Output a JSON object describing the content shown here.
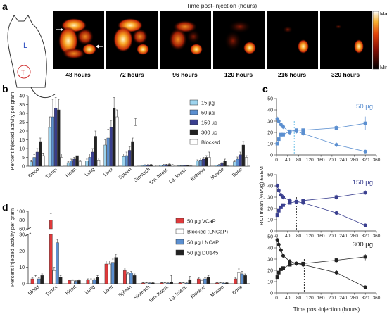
{
  "panel_labels": {
    "a": "a",
    "b": "b",
    "c": "c",
    "d": "d"
  },
  "panel_a": {
    "title": "Time post-injection (hours)",
    "mouse_labels": {
      "left": "L",
      "tumor": "T"
    },
    "timepoints": [
      "48 hours",
      "72 hours",
      "96 hours",
      "120 hours",
      "216 hours",
      "320 hours"
    ],
    "colorbar": {
      "max": "Max",
      "min": "Min"
    },
    "arrows": "→ ←"
  },
  "chart_data": [
    {
      "id": "b",
      "type": "bar",
      "ylabel": "Percent injected activity per gram",
      "ylim": [
        0,
        40
      ],
      "yticks": [
        0,
        5,
        10,
        15,
        20,
        25,
        30,
        35,
        40
      ],
      "categories": [
        "Blood",
        "Tumor",
        "Heart",
        "Lung",
        "Liver",
        "Spleen",
        "Stomach",
        "Sm. Intest.",
        "Lg. Intest.",
        "Kidneys",
        "Muscle",
        "Bone"
      ],
      "legend_position": "top-right",
      "series": [
        {
          "name": "15 µg",
          "color": "#9ed4ee",
          "values": [
            2.5,
            22,
            2,
            3,
            12,
            5.5,
            0.4,
            0.5,
            0.3,
            3,
            0.5,
            2.5
          ],
          "err": [
            1,
            6,
            0.6,
            1,
            3,
            1.5,
            0.2,
            0.2,
            0.2,
            0.6,
            0.2,
            0.8
          ]
        },
        {
          "name": "50 µg",
          "color": "#5b8fd0",
          "values": [
            5,
            28,
            3,
            5,
            16,
            6,
            0.5,
            0.7,
            0.3,
            3.5,
            0.7,
            4
          ],
          "err": [
            1.5,
            10,
            1,
            2,
            5,
            2,
            0.3,
            0.3,
            0.2,
            1,
            0.3,
            1.2
          ]
        },
        {
          "name": "150 µg",
          "color": "#3a3f8f",
          "values": [
            8,
            33,
            4,
            8,
            22,
            9,
            0.6,
            0.8,
            0.4,
            4,
            1.5,
            6.5
          ],
          "err": [
            2,
            6,
            1,
            2,
            4,
            2,
            0.3,
            0.3,
            0.2,
            1,
            0.5,
            1.5
          ]
        },
        {
          "name": "300 µg",
          "color": "#222222",
          "values": [
            14,
            32,
            6,
            17,
            33,
            14,
            0.8,
            1,
            0.5,
            5,
            3,
            12
          ],
          "err": [
            2,
            6,
            1,
            3,
            6,
            2,
            0.3,
            0.3,
            0.2,
            1,
            1,
            2
          ]
        },
        {
          "name": "Blocked",
          "color": "#ffffff",
          "values": [
            6,
            5,
            2.5,
            3.5,
            28,
            23,
            0.5,
            0.7,
            0.2,
            5,
            0.3,
            5
          ],
          "err": [
            1.5,
            2,
            0.8,
            1,
            4,
            4,
            0.2,
            0.2,
            0.2,
            3,
            0.2,
            1
          ]
        }
      ]
    },
    {
      "id": "c",
      "type": "scatter",
      "ylabel": "ROI mean (%IA/g) ±SEM",
      "xlabel": "Time post-injection (hours)",
      "xlim": [
        0,
        360
      ],
      "xticks": [
        0,
        40,
        80,
        120,
        160,
        200,
        240,
        280,
        320,
        360
      ],
      "panels": [
        {
          "label": "50 µg",
          "color": "#5b8fd0",
          "ylim": [
            0,
            50
          ],
          "yticks": [
            0,
            10,
            20,
            30,
            40,
            50
          ],
          "series": [
            {
              "marker": "circle",
              "x": [
                3,
                8,
                16,
                24,
                48,
                72,
                96,
                216,
                320
              ],
              "y": [
                32,
                30,
                27,
                25,
                20,
                21,
                19,
                9,
                3
              ],
              "err": [
                2,
                2,
                2,
                2,
                2,
                2,
                2,
                2,
                1
              ]
            },
            {
              "marker": "square",
              "x": [
                3,
                8,
                16,
                24,
                48,
                72,
                96,
                216,
                320
              ],
              "y": [
                10,
                14,
                18,
                18,
                21,
                22,
                22,
                24,
                28
              ],
              "err": [
                1,
                1,
                1,
                1,
                1,
                1,
                1,
                2,
                6
              ]
            }
          ],
          "dashed_x": 64
        },
        {
          "label": "150 µg",
          "color": "#3a3f8f",
          "ylim": [
            0,
            50
          ],
          "yticks": [
            0,
            10,
            20,
            30,
            40,
            50
          ],
          "series": [
            {
              "marker": "circle",
              "x": [
                3,
                8,
                16,
                24,
                48,
                72,
                96,
                216,
                320
              ],
              "y": [
                40,
                36,
                32,
                30,
                27,
                26,
                25,
                16,
                5
              ],
              "err": [
                2,
                2,
                2,
                2,
                2,
                2,
                2,
                2,
                1
              ]
            },
            {
              "marker": "square",
              "x": [
                3,
                8,
                16,
                24,
                48,
                72,
                96,
                216,
                320
              ],
              "y": [
                14,
                18,
                21,
                23,
                25,
                26,
                27,
                30,
                34
              ],
              "err": [
                1,
                1,
                1,
                1,
                1,
                1,
                1,
                2,
                2
              ]
            }
          ],
          "dashed_x": 72
        },
        {
          "label": "300 µg",
          "color": "#222222",
          "ylim": [
            0,
            50
          ],
          "yticks": [
            0,
            10,
            20,
            30,
            40,
            50
          ],
          "series": [
            {
              "marker": "circle",
              "x": [
                3,
                8,
                16,
                24,
                48,
                72,
                96,
                216,
                320
              ],
              "y": [
                47,
                43,
                38,
                33,
                28,
                26,
                25,
                18,
                5
              ],
              "err": [
                2,
                2,
                2,
                2,
                2,
                2,
                2,
                2,
                1
              ]
            },
            {
              "marker": "square",
              "x": [
                3,
                8,
                16,
                24,
                48,
                72,
                96,
                216,
                320
              ],
              "y": [
                14,
                18,
                21,
                22,
                25,
                26,
                26,
                29,
                32
              ],
              "err": [
                1,
                1,
                1,
                1,
                1,
                1,
                1,
                2,
                3
              ]
            }
          ],
          "dashed_x": 100
        }
      ]
    },
    {
      "id": "d",
      "type": "bar",
      "ylabel": "Percent injected activity per gram",
      "ylim_lower": [
        0,
        30
      ],
      "ylim_upper": [
        60,
        100
      ],
      "yticks_lower": [
        0,
        10,
        20,
        30
      ],
      "yticks_upper": [
        60,
        80,
        100
      ],
      "categories": [
        "Blood",
        "Tumor",
        "Heart",
        "Lung",
        "Liver",
        "Spleen",
        "Stomach",
        "Sm. Intest.",
        "Lg. Intest.",
        "Kidneys",
        "Muscle",
        "Bone"
      ],
      "legend_position": "top-right",
      "series": [
        {
          "name": "50 µg VCaP",
          "color": "#e0393b",
          "values": [
            3,
            80,
            2,
            2.5,
            12,
            8,
            0.5,
            0.5,
            0.5,
            3,
            0.5,
            3
          ],
          "err": [
            0.6,
            15,
            0.4,
            0.5,
            2,
            1,
            0.2,
            0.2,
            0.2,
            0.6,
            0.2,
            0.6
          ]
        },
        {
          "name": "Blocked (LNCaP)",
          "color": "#ffffff",
          "values": [
            4,
            8,
            2,
            2.5,
            12,
            6,
            0.5,
            0.5,
            0.5,
            2,
            0.5,
            7
          ],
          "err": [
            1,
            2,
            0.5,
            0.5,
            2,
            1,
            0.2,
            0.2,
            0.2,
            0.5,
            0.2,
            2
          ]
        },
        {
          "name": "50 µg LNCaP",
          "color": "#5b8fd0",
          "values": [
            3,
            25,
            1.5,
            2.5,
            13,
            6.5,
            0.4,
            0.4,
            0.4,
            3,
            0.4,
            6
          ],
          "err": [
            0.6,
            2,
            0.4,
            0.5,
            2,
            1,
            0.2,
            0.2,
            0.2,
            0.6,
            0.2,
            1.5
          ]
        },
        {
          "name": "50 µg DU145",
          "color": "#222222",
          "values": [
            5,
            4,
            2,
            4,
            16,
            5,
            0.5,
            1,
            2.5,
            4,
            0.5,
            5
          ],
          "err": [
            1,
            1,
            0.5,
            1,
            2,
            1,
            0.2,
            4,
            2,
            1,
            0.2,
            1
          ]
        }
      ]
    }
  ]
}
